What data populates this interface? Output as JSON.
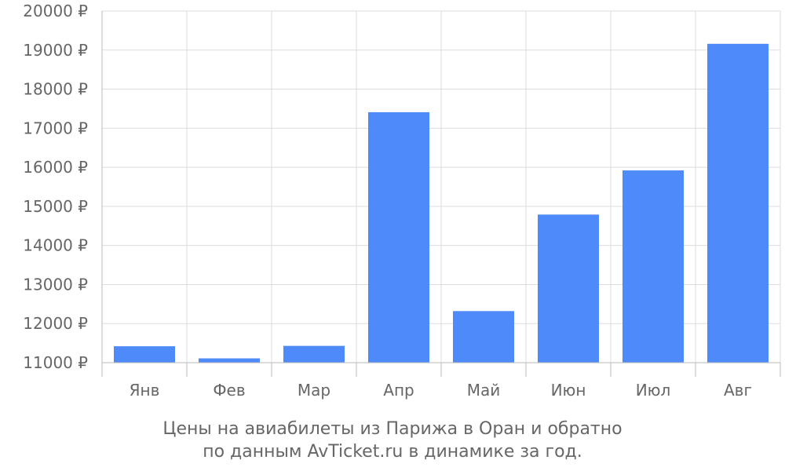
{
  "chart_data": {
    "type": "bar",
    "categories": [
      "Янв",
      "Фев",
      "Мар",
      "Апр",
      "Май",
      "Июн",
      "Июл",
      "Авг"
    ],
    "values": [
      11420,
      11110,
      11430,
      17410,
      12320,
      14790,
      15920,
      19160
    ],
    "ylim": [
      11000,
      20000
    ],
    "yticks": [
      11000,
      12000,
      13000,
      14000,
      15000,
      16000,
      17000,
      18000,
      19000,
      20000
    ],
    "ytick_suffix": " ₽",
    "grid": true,
    "bar_color": "#4e8af9",
    "caption_line1": "Цены на авиабилеты из Парижа в Оран и обратно",
    "caption_line2": "по данным AvTicket.ru в динамике за год."
  }
}
